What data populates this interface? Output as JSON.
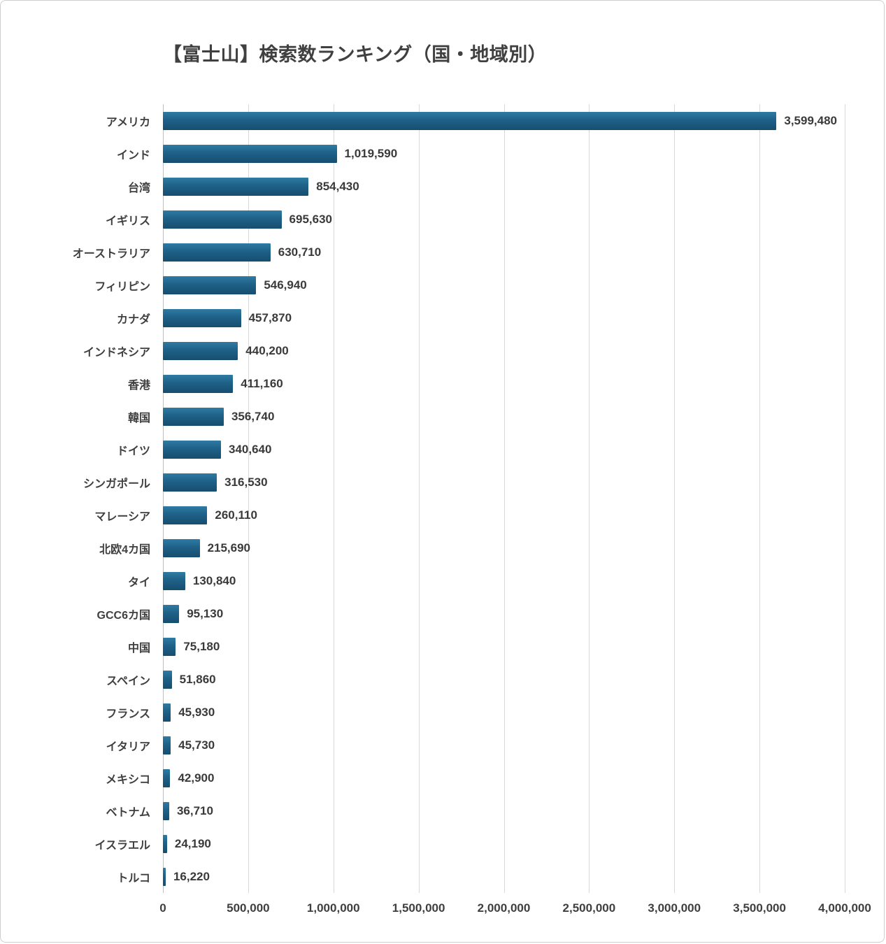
{
  "colors": {
    "bar": "#1e6387",
    "text": "#404040",
    "gridline": "#d9d9d9"
  },
  "chart_data": {
    "type": "bar",
    "orientation": "horizontal",
    "title": "【富士山】検索数ランキング（国・地域別）",
    "categories": [
      "アメリカ",
      "インド",
      "台湾",
      "イギリス",
      "オーストラリア",
      "フィリピン",
      "カナダ",
      "インドネシア",
      "香港",
      "韓国",
      "ドイツ",
      "シンガポール",
      "マレーシア",
      "北欧4カ国",
      "タイ",
      "GCC6カ国",
      "中国",
      "スペイン",
      "フランス",
      "イタリア",
      "メキシコ",
      "ベトナム",
      "イスラエル",
      "トルコ"
    ],
    "values": [
      3599480,
      1019590,
      854430,
      695630,
      630710,
      546940,
      457870,
      440200,
      411160,
      356740,
      340640,
      316530,
      260110,
      215690,
      130840,
      95130,
      75180,
      51860,
      45930,
      45730,
      42900,
      36710,
      24190,
      16220
    ],
    "value_labels": [
      "3,599,480",
      "1,019,590",
      "854,430",
      "695,630",
      "630,710",
      "546,940",
      "457,870",
      "440,200",
      "411,160",
      "356,740",
      "340,640",
      "316,530",
      "260,110",
      "215,690",
      "130,840",
      "95,130",
      "75,180",
      "51,860",
      "45,930",
      "45,730",
      "42,900",
      "36,710",
      "24,190",
      "16,220"
    ],
    "xlabel": "",
    "ylabel": "",
    "xlim": [
      0,
      4000000
    ],
    "xticks": [
      0,
      500000,
      1000000,
      1500000,
      2000000,
      2500000,
      3000000,
      3500000,
      4000000
    ],
    "xtick_labels": [
      "0",
      "500,000",
      "1,000,000",
      "1,500,000",
      "2,000,000",
      "2,500,000",
      "3,000,000",
      "3,500,000",
      "4,000,000"
    ],
    "grid": "vertical",
    "legend": "none"
  }
}
